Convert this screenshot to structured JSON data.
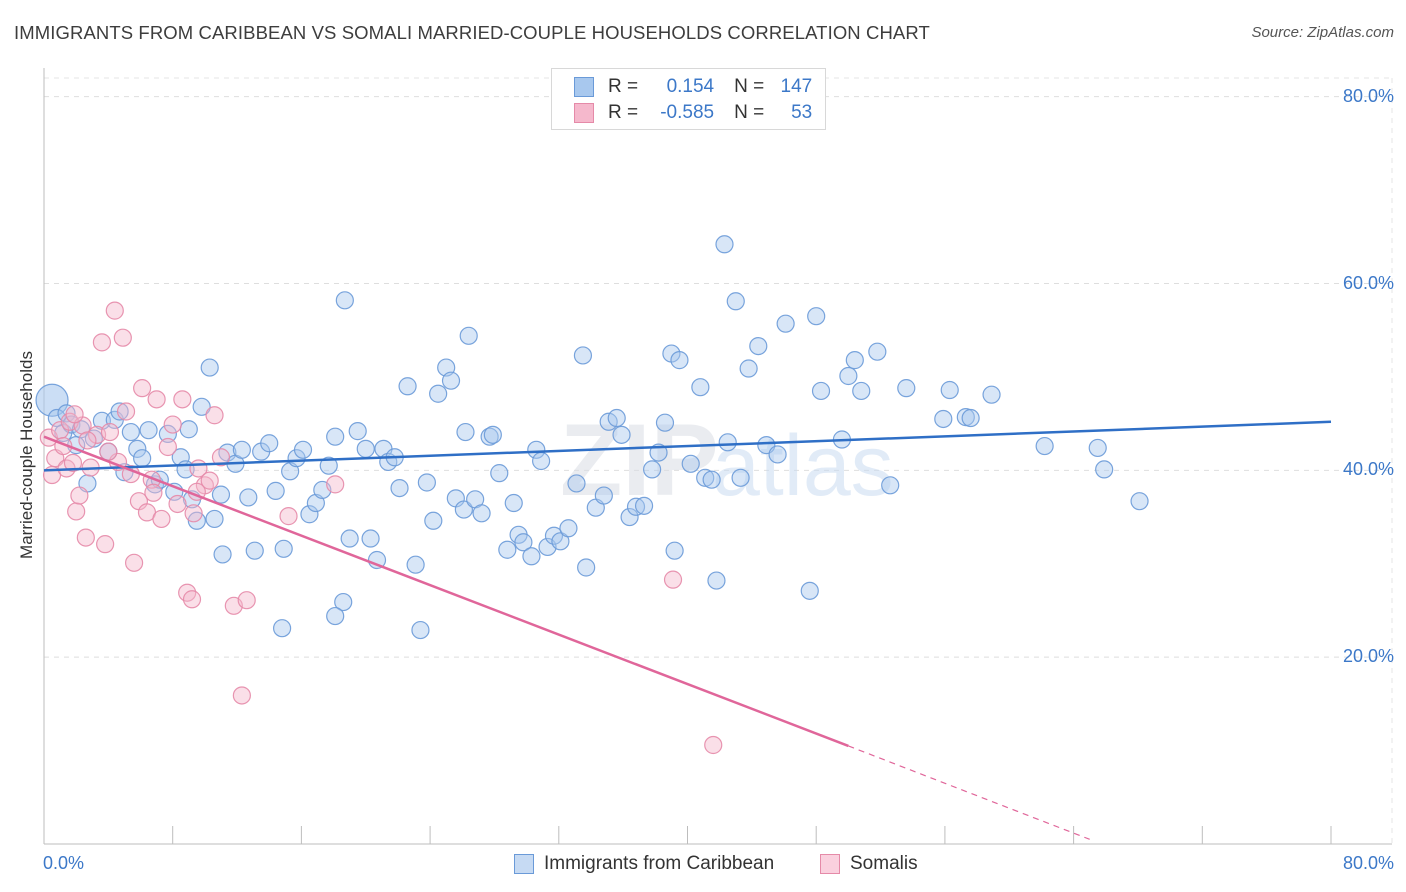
{
  "header": {
    "title": "IMMIGRANTS FROM CARIBBEAN VS SOMALI MARRIED-COUPLE HOUSEHOLDS CORRELATION CHART",
    "source": "Source: ZipAtlas.com"
  },
  "watermark": {
    "zip": "ZIP",
    "atlas": "atlas"
  },
  "legend": {
    "r_label": "R =",
    "n_label": "N =",
    "rows": [
      {
        "r": "0.154",
        "n": "147",
        "color": "#a8c8ee"
      },
      {
        "r": "-0.585",
        "n": "53",
        "color": "#f5b8cc"
      }
    ]
  },
  "chart_data": {
    "type": "scatter",
    "title": "IMMIGRANTS FROM CARIBBEAN VS SOMALI MARRIED-COUPLE HOUSEHOLDS CORRELATION CHART",
    "xlabel": "",
    "ylabel": "Married-couple Households",
    "xlim": [
      0,
      80
    ],
    "ylim": [
      0,
      82
    ],
    "x_tick_labels": [
      "0.0%",
      "80.0%"
    ],
    "y_ticks": [
      20,
      40,
      60,
      80
    ],
    "y_tick_labels": [
      "20.0%",
      "40.0%",
      "60.0%",
      "80.0%"
    ],
    "grid": true,
    "legend_position": "bottom",
    "series": [
      {
        "name": "Immigrants from Caribbean",
        "color": "#6a9ad8",
        "fill": "#a8c8ee",
        "trend": {
          "x": [
            0,
            80
          ],
          "y": [
            40.0,
            45.2
          ]
        },
        "points": [
          [
            0.5,
            47.5
          ],
          [
            0.8,
            45.6
          ],
          [
            1.2,
            44.0
          ],
          [
            1.4,
            46.1
          ],
          [
            1.7,
            44.9
          ],
          [
            2.0,
            42.7
          ],
          [
            2.3,
            44.4
          ],
          [
            2.7,
            38.6
          ],
          [
            3.1,
            43.4
          ],
          [
            3.6,
            45.3
          ],
          [
            4.0,
            42.0
          ],
          [
            4.4,
            45.4
          ],
          [
            4.7,
            46.3
          ],
          [
            5.0,
            39.8
          ],
          [
            5.4,
            44.1
          ],
          [
            5.8,
            42.3
          ],
          [
            6.1,
            41.3
          ],
          [
            6.5,
            44.3
          ],
          [
            6.9,
            38.5
          ],
          [
            7.2,
            39.0
          ],
          [
            7.7,
            43.9
          ],
          [
            8.1,
            37.7
          ],
          [
            8.5,
            41.4
          ],
          [
            8.8,
            40.1
          ],
          [
            9.2,
            36.9
          ],
          [
            9.5,
            34.6
          ],
          [
            9.8,
            46.8
          ],
          [
            10.3,
            51.0
          ],
          [
            10.6,
            34.8
          ],
          [
            11.0,
            37.4
          ],
          [
            11.4,
            41.9
          ],
          [
            11.9,
            40.7
          ],
          [
            12.3,
            42.2
          ],
          [
            12.7,
            37.1
          ],
          [
            13.1,
            31.4
          ],
          [
            13.5,
            42.0
          ],
          [
            14.0,
            42.9
          ],
          [
            14.4,
            37.8
          ],
          [
            14.9,
            31.6
          ],
          [
            15.3,
            39.9
          ],
          [
            15.7,
            41.3
          ],
          [
            16.1,
            42.2
          ],
          [
            16.5,
            35.3
          ],
          [
            16.9,
            36.5
          ],
          [
            17.3,
            37.9
          ],
          [
            17.7,
            40.5
          ],
          [
            18.1,
            43.6
          ],
          [
            18.6,
            25.9
          ],
          [
            19.0,
            32.7
          ],
          [
            19.5,
            44.2
          ],
          [
            20.0,
            42.3
          ],
          [
            20.3,
            32.7
          ],
          [
            20.7,
            30.4
          ],
          [
            21.1,
            42.3
          ],
          [
            21.4,
            40.9
          ],
          [
            21.8,
            41.4
          ],
          [
            22.1,
            38.1
          ],
          [
            22.6,
            49.0
          ],
          [
            23.1,
            29.9
          ],
          [
            23.4,
            22.9
          ],
          [
            23.8,
            38.7
          ],
          [
            24.2,
            34.6
          ],
          [
            24.5,
            48.2
          ],
          [
            25.0,
            51.0
          ],
          [
            25.3,
            49.6
          ],
          [
            25.6,
            37.0
          ],
          [
            26.1,
            35.8
          ],
          [
            26.4,
            54.4
          ],
          [
            26.8,
            36.9
          ],
          [
            27.2,
            35.4
          ],
          [
            27.7,
            43.6
          ],
          [
            27.9,
            43.8
          ],
          [
            28.3,
            39.7
          ],
          [
            28.8,
            31.5
          ],
          [
            29.2,
            36.5
          ],
          [
            29.5,
            33.1
          ],
          [
            29.8,
            32.3
          ],
          [
            30.3,
            30.8
          ],
          [
            30.6,
            42.2
          ],
          [
            30.9,
            41.0
          ],
          [
            31.3,
            31.8
          ],
          [
            31.7,
            33.0
          ],
          [
            32.1,
            32.4
          ],
          [
            32.6,
            33.8
          ],
          [
            33.1,
            38.6
          ],
          [
            33.5,
            52.3
          ],
          [
            33.7,
            29.6
          ],
          [
            34.3,
            36.0
          ],
          [
            34.8,
            37.3
          ],
          [
            35.1,
            45.2
          ],
          [
            35.6,
            45.6
          ],
          [
            35.9,
            43.8
          ],
          [
            36.4,
            35.0
          ],
          [
            36.8,
            36.1
          ],
          [
            37.3,
            36.2
          ],
          [
            37.8,
            40.1
          ],
          [
            38.2,
            41.9
          ],
          [
            38.6,
            45.1
          ],
          [
            39.0,
            52.5
          ],
          [
            39.2,
            31.4
          ],
          [
            39.5,
            51.8
          ],
          [
            40.2,
            40.7
          ],
          [
            40.8,
            48.9
          ],
          [
            41.1,
            39.2
          ],
          [
            41.5,
            39.0
          ],
          [
            41.8,
            28.2
          ],
          [
            42.3,
            64.2
          ],
          [
            42.5,
            43.0
          ],
          [
            43.0,
            58.1
          ],
          [
            43.3,
            39.2
          ],
          [
            43.8,
            50.9
          ],
          [
            44.4,
            53.3
          ],
          [
            44.9,
            42.7
          ],
          [
            45.6,
            41.7
          ],
          [
            46.1,
            55.7
          ],
          [
            47.6,
            27.1
          ],
          [
            48.0,
            56.5
          ],
          [
            48.3,
            48.5
          ],
          [
            49.6,
            43.3
          ],
          [
            50.0,
            50.1
          ],
          [
            50.4,
            51.8
          ],
          [
            50.8,
            48.5
          ],
          [
            51.8,
            52.7
          ],
          [
            52.6,
            38.4
          ],
          [
            53.6,
            48.8
          ],
          [
            55.9,
            45.5
          ],
          [
            56.3,
            48.6
          ],
          [
            57.3,
            45.7
          ],
          [
            57.6,
            45.6
          ],
          [
            58.9,
            48.1
          ],
          [
            62.2,
            42.6
          ],
          [
            65.5,
            42.4
          ],
          [
            65.9,
            40.1
          ],
          [
            68.1,
            36.7
          ],
          [
            18.7,
            58.2
          ],
          [
            18.1,
            24.4
          ],
          [
            26.2,
            44.1
          ],
          [
            14.8,
            23.1
          ],
          [
            9.0,
            44.4
          ],
          [
            11.1,
            31.0
          ]
        ]
      },
      {
        "name": "Somalis",
        "color": "#e58aa8",
        "fill": "#f5b8cc",
        "trend": {
          "x": [
            0,
            50
          ],
          "y": [
            43.6,
            10.5
          ]
        },
        "trend_extension": {
          "x": [
            50,
            65
          ],
          "y": [
            10.5,
            0.5
          ]
        },
        "points": [
          [
            0.3,
            43.5
          ],
          [
            0.5,
            39.5
          ],
          [
            0.7,
            41.3
          ],
          [
            1.0,
            44.3
          ],
          [
            1.2,
            42.6
          ],
          [
            1.4,
            40.2
          ],
          [
            1.6,
            45.2
          ],
          [
            1.8,
            40.8
          ],
          [
            2.0,
            35.6
          ],
          [
            2.2,
            37.3
          ],
          [
            2.4,
            44.8
          ],
          [
            2.6,
            32.8
          ],
          [
            2.9,
            40.3
          ],
          [
            3.3,
            43.8
          ],
          [
            3.6,
            53.7
          ],
          [
            3.8,
            32.1
          ],
          [
            4.1,
            44.1
          ],
          [
            4.4,
            57.1
          ],
          [
            4.6,
            40.9
          ],
          [
            4.9,
            54.2
          ],
          [
            5.1,
            46.3
          ],
          [
            5.4,
            39.6
          ],
          [
            5.6,
            30.1
          ],
          [
            5.9,
            36.7
          ],
          [
            6.1,
            48.8
          ],
          [
            6.4,
            35.5
          ],
          [
            6.7,
            39.0
          ],
          [
            7.0,
            47.6
          ],
          [
            7.3,
            34.8
          ],
          [
            7.7,
            42.5
          ],
          [
            8.0,
            44.9
          ],
          [
            8.3,
            36.4
          ],
          [
            8.6,
            47.6
          ],
          [
            8.9,
            26.9
          ],
          [
            9.2,
            26.2
          ],
          [
            9.6,
            40.2
          ],
          [
            10.0,
            38.4
          ],
          [
            10.3,
            38.9
          ],
          [
            10.6,
            45.9
          ],
          [
            11.0,
            41.4
          ],
          [
            11.8,
            25.5
          ],
          [
            12.3,
            15.9
          ],
          [
            12.6,
            26.1
          ],
          [
            15.2,
            35.1
          ],
          [
            18.1,
            38.5
          ],
          [
            39.1,
            28.3
          ],
          [
            41.6,
            10.6
          ],
          [
            9.3,
            35.4
          ],
          [
            4.0,
            42.0
          ],
          [
            1.9,
            46.0
          ],
          [
            2.7,
            43.2
          ],
          [
            6.8,
            37.6
          ],
          [
            9.5,
            37.7
          ]
        ]
      }
    ]
  }
}
